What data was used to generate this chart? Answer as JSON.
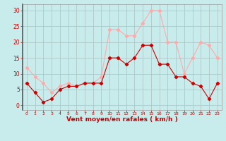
{
  "hours": [
    0,
    1,
    2,
    3,
    4,
    5,
    6,
    7,
    8,
    9,
    10,
    11,
    12,
    13,
    14,
    15,
    16,
    17,
    18,
    19,
    20,
    21,
    22,
    23
  ],
  "avg_wind": [
    7,
    4,
    1,
    2,
    5,
    6,
    6,
    7,
    7,
    7,
    15,
    15,
    13,
    15,
    19,
    19,
    13,
    13,
    9,
    9,
    7,
    6,
    2,
    7
  ],
  "gust_wind": [
    12,
    9,
    7,
    4,
    6,
    7,
    6,
    7,
    7,
    9,
    24,
    24,
    22,
    22,
    26,
    30,
    30,
    20,
    20,
    10,
    15,
    20,
    19,
    15
  ],
  "avg_color": "#cc0000",
  "gust_color": "#ffaaaa",
  "bg_color": "#c8ecec",
  "grid_color": "#b0c8c8",
  "xlabel": "Vent moyen/en rafales ( km/h )",
  "xlabel_color": "#cc0000",
  "yticks": [
    0,
    5,
    10,
    15,
    20,
    25,
    30
  ],
  "ylim": [
    -1.5,
    32
  ],
  "xlim": [
    -0.5,
    23.5
  ],
  "tick_color": "#cc0000",
  "left_spine_color": "#555555"
}
